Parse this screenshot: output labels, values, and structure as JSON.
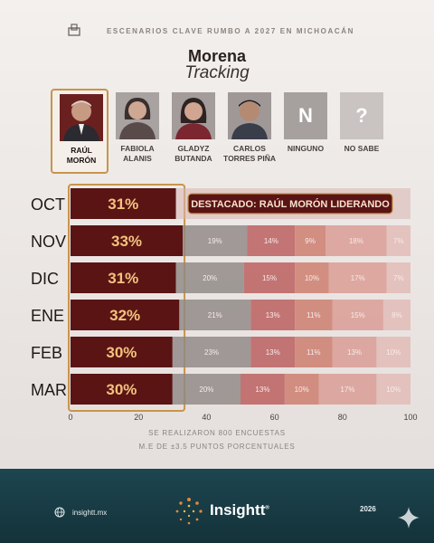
{
  "header": {
    "title": "ESCENARIOS CLAVE RUMBO A 2027 EN MICHOACÁN",
    "party": "Morena",
    "subtitle": "Tracking"
  },
  "candidates": [
    {
      "line1": "RAÚL",
      "line2": "MORÓN",
      "selected": true
    },
    {
      "line1": "FABIOLA",
      "line2": "ALANIS"
    },
    {
      "line1": "GLADYZ",
      "line2": "BUTANDA"
    },
    {
      "line1": "CARLOS",
      "line2": "TORRES PIÑA"
    },
    {
      "line1": "NINGUNO",
      "line2": "",
      "letter": "N"
    },
    {
      "line1": "NO SABE",
      "line2": "",
      "letter": "?"
    }
  ],
  "annotation": "DESTACADO: RAÚL MORÓN LIDERANDO",
  "footnote": {
    "line1": "SE REALIZARON 800 ENCUESTAS",
    "line2": "M.E DE ±3.5 PUNTOS PORCENTUALES"
  },
  "footer": {
    "website": "insightt.mx",
    "brand": "Insightt",
    "year": "2026"
  },
  "colors": {
    "moron": "#5a1414",
    "alanis": "#8f8785",
    "butanda": "#b95a5a",
    "torres": "#cc7a6a",
    "ninguno": "#d99a91",
    "nosabe": "#e2b9b4",
    "highlight": "#c8954a"
  },
  "chart_data": {
    "type": "bar",
    "stacked": true,
    "orientation": "horizontal",
    "categories": [
      "OCT",
      "NOV",
      "DIC",
      "ENE",
      "FEB",
      "MAR"
    ],
    "series": [
      {
        "name": "RAÚL MORÓN",
        "values": [
          31,
          33,
          31,
          32,
          30,
          30
        ]
      },
      {
        "name": "FABIOLA ALANIS",
        "values": [
          null,
          19,
          20,
          21,
          23,
          20
        ]
      },
      {
        "name": "GLADYZ BUTANDA",
        "values": [
          null,
          14,
          15,
          13,
          13,
          13
        ]
      },
      {
        "name": "CARLOS TORRES PIÑA",
        "values": [
          null,
          9,
          10,
          11,
          11,
          10
        ]
      },
      {
        "name": "NINGUNO",
        "values": [
          null,
          18,
          17,
          15,
          13,
          17
        ]
      },
      {
        "name": "NO SABE",
        "values": [
          null,
          7,
          7,
          8,
          10,
          10
        ]
      }
    ],
    "x_ticks": [
      0,
      20,
      40,
      60,
      80,
      100
    ],
    "xlim": [
      0,
      100
    ]
  }
}
